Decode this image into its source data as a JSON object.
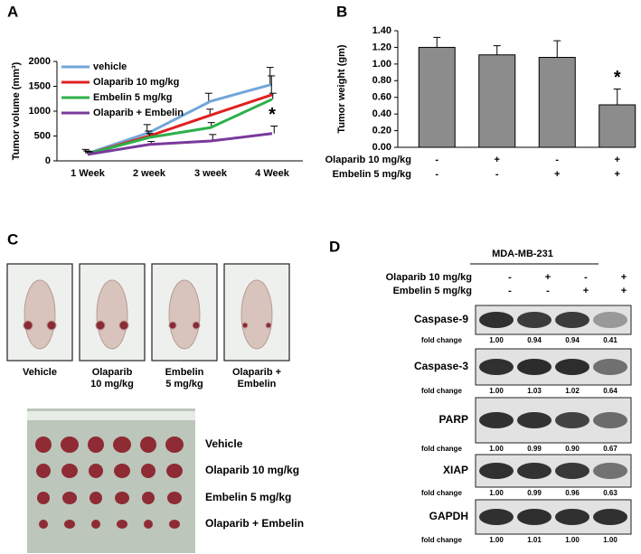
{
  "panels": [
    "A",
    "B",
    "C",
    "D"
  ],
  "chart_data": [
    {
      "type": "line",
      "ylabel": "Tumor volume (mm³)",
      "categories": [
        "1 Week",
        "2  week",
        "3 week",
        "4 Week"
      ],
      "ylim": [
        0,
        2000
      ],
      "yticks": [
        0,
        500,
        1000,
        1500,
        2000
      ],
      "legend": "upper left",
      "annotation": "*",
      "series": [
        {
          "name": "vehicle",
          "color": "#71a6d8",
          "values": [
            150,
            570,
            1200,
            1540
          ],
          "errors": [
            80,
            160,
            160,
            340
          ]
        },
        {
          "name": "Olaparib 10 mg/kg",
          "color": "#e02020",
          "values": [
            140,
            500,
            920,
            1330
          ],
          "errors": [
            60,
            100,
            120,
            380
          ]
        },
        {
          "name": "Embelin 5 mg/kg",
          "color": "#2db04a",
          "values": [
            140,
            470,
            670,
            1240
          ],
          "errors": [
            50,
            80,
            100,
            120
          ]
        },
        {
          "name": "Olaparib + Embelin",
          "color": "#7a3a9c",
          "values": [
            130,
            330,
            400,
            550
          ],
          "errors": [
            50,
            60,
            130,
            150
          ]
        }
      ]
    },
    {
      "type": "bar",
      "ylabel": "Tumor weight (gm)",
      "categories": [
        null,
        null,
        null,
        null
      ],
      "values": [
        1.2,
        1.11,
        1.08,
        0.51
      ],
      "errors": [
        0.12,
        0.11,
        0.2,
        0.19
      ],
      "color": "#8c8c8c",
      "annotation": "*",
      "ylim": [
        0,
        1.4
      ],
      "yticks": [
        {
          "value": 0,
          "label": "0.00"
        },
        {
          "value": 0.2,
          "label": "0.20"
        },
        {
          "value": 0.4,
          "label": "0.40"
        },
        {
          "value": 0.6,
          "label": "0.60"
        },
        {
          "value": 0.8,
          "label": "0.80"
        },
        {
          "value": 1,
          "label": "1.00"
        },
        {
          "value": 1.2,
          "label": "1.20"
        },
        {
          "value": 1.4,
          "label": "1.40"
        }
      ],
      "treatments": [
        {
          "label": "Olaparib 10 mg/kg",
          "signs": [
            "-",
            "+",
            "-",
            "+"
          ]
        },
        {
          "label": "Embelin 5 mg/kg",
          "signs": [
            "-",
            "-",
            "+",
            "+"
          ]
        }
      ]
    }
  ],
  "mice": [
    [
      "Vehicle"
    ],
    [
      "Olaparib",
      "10 mg/kg"
    ],
    [
      "Embelin",
      "5 mg/kg"
    ],
    [
      "Olaparib +",
      "Embelin"
    ]
  ],
  "tumor_rows": [
    "Vehicle",
    "Olaparib 10 mg/kg",
    "Embelin 5 mg/kg",
    "Olaparib + Embelin"
  ],
  "blot": {
    "cell_line": "MDA-MB-231",
    "treatments": [
      {
        "label": "Olaparib 10 mg/kg",
        "signs": [
          "-",
          "+",
          "-",
          "+"
        ]
      },
      {
        "label": "Embelin 5 mg/kg",
        "signs": [
          "-",
          "-",
          "+",
          "+"
        ]
      }
    ],
    "fold_label": "fold change",
    "rows": [
      {
        "protein": "Caspase-9",
        "fold": [
          {
            "value": 1,
            "label": "1.00"
          },
          {
            "value": 0.94,
            "label": "0.94"
          },
          {
            "value": 0.94,
            "label": "0.94"
          },
          {
            "value": 0.41,
            "label": "0.41"
          }
        ]
      },
      {
        "protein": "Caspase-3",
        "fold": [
          {
            "value": 1,
            "label": "1.00"
          },
          {
            "value": 1.03,
            "label": "1.03"
          },
          {
            "value": 1.02,
            "label": "1.02"
          },
          {
            "value": 0.64,
            "label": "0.64"
          }
        ]
      },
      {
        "protein": "PARP",
        "fold": [
          {
            "value": 1,
            "label": "1.00"
          },
          {
            "value": 0.99,
            "label": "0.99"
          },
          {
            "value": 0.9,
            "label": "0.90"
          },
          {
            "value": 0.67,
            "label": "0.67"
          }
        ]
      },
      {
        "protein": "XIAP",
        "fold": [
          {
            "value": 1,
            "label": "1.00"
          },
          {
            "value": 0.99,
            "label": "0.99"
          },
          {
            "value": 0.96,
            "label": "0.96"
          },
          {
            "value": 0.63,
            "label": "0.63"
          }
        ]
      },
      {
        "protein": "GAPDH",
        "fold": [
          {
            "value": 1,
            "label": "1.00"
          },
          {
            "value": 1.01,
            "label": "1.01"
          },
          {
            "value": 1,
            "label": "1.00"
          },
          {
            "value": 1,
            "label": "1.00"
          }
        ]
      }
    ]
  }
}
